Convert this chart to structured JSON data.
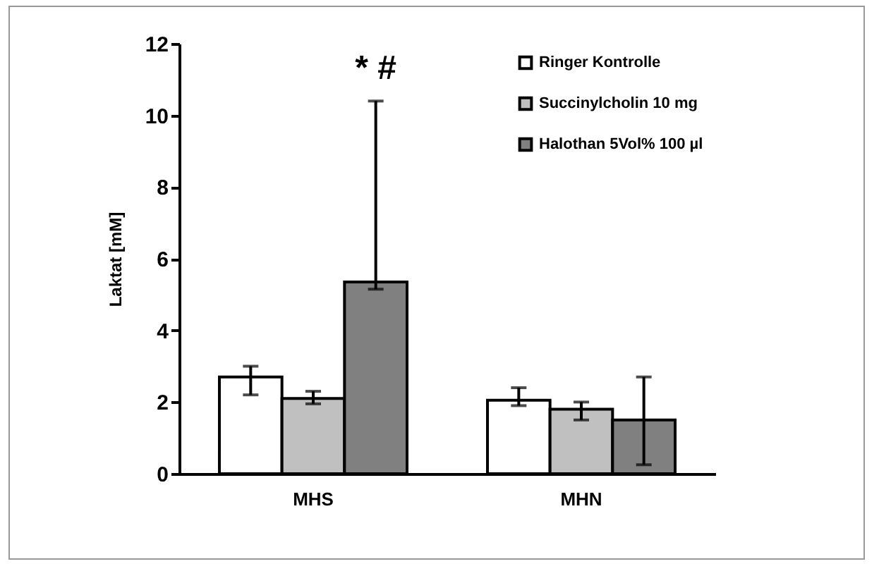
{
  "chart_data": {
    "type": "bar",
    "ylabel": "Laktat [mM]",
    "categories": [
      "MHS",
      "MHN"
    ],
    "series": [
      {
        "name": "Ringer Kontrolle",
        "color": "#ffffff",
        "values": [
          2.7,
          2.05
        ],
        "errors": [
          [
            2.2,
            3.0
          ],
          [
            1.9,
            2.4
          ]
        ]
      },
      {
        "name": "Succinylcholin 10 mg",
        "color": "#c0c0c0",
        "values": [
          2.1,
          1.8
        ],
        "errors": [
          [
            1.95,
            2.3
          ],
          [
            1.5,
            2.0
          ]
        ]
      },
      {
        "name": "Halothan 5Vol% 100 µl",
        "color": "#808080",
        "values": [
          5.35,
          1.5
        ],
        "errors": [
          [
            5.15,
            10.4
          ],
          [
            0.25,
            2.7
          ]
        ]
      }
    ],
    "annotations": [
      "* #"
    ],
    "ylim": [
      0,
      12
    ],
    "yticks": [
      0,
      2,
      4,
      6,
      8,
      10,
      12
    ],
    "grid": false,
    "legend": "top right"
  }
}
